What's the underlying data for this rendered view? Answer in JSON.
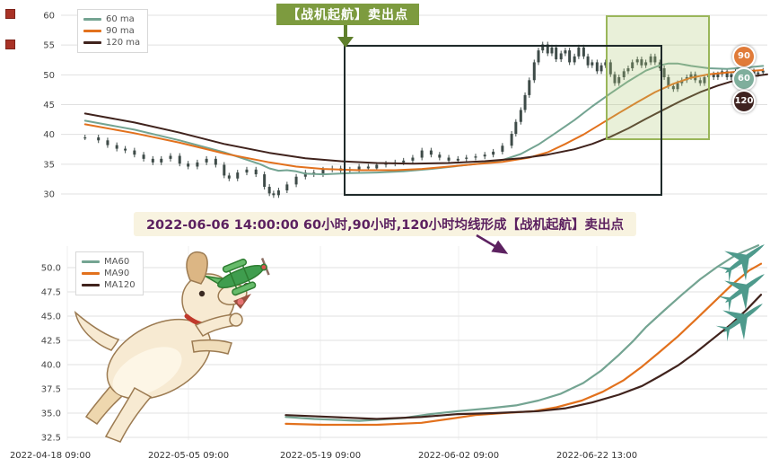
{
  "colors": {
    "ma60": "#74a492",
    "ma90": "#e2711d",
    "ma120": "#40231d",
    "candle": "#3e4b48",
    "sell_label_bg": "#7d9b3f",
    "sell_arrow": "#5f7f2c",
    "annotation_text": "#5c2160",
    "annotation_bg": "#f8f3e0",
    "highlight_box_border": "#9ab65a",
    "pattern_box_border": "#1f2a2a",
    "jet": "#4e9a8c",
    "toy_plane": "#3f9d4e"
  },
  "top_chart": {
    "legend": [
      {
        "label": "60 ma",
        "color": "#74a492"
      },
      {
        "label": "90 ma",
        "color": "#e2711d"
      },
      {
        "label": "120 ma",
        "color": "#40231d"
      }
    ],
    "sell_label": "【战机起航】卖出点",
    "badges": [
      {
        "label": "90",
        "color": "#e07b39"
      },
      {
        "label": "60",
        "color": "#7fae9c"
      },
      {
        "label": "120",
        "color": "#3f2320"
      }
    ]
  },
  "annotation": {
    "text": "2022-06-06 14:00:00 60小时,90小时,120小时均线形成【战机起航】卖出点"
  },
  "bottom_chart": {
    "legend": [
      {
        "label": "MA60",
        "color": "#74a492"
      },
      {
        "label": "MA90",
        "color": "#e2711d"
      },
      {
        "label": "MA120",
        "color": "#40231d"
      }
    ]
  },
  "x_axis": {
    "labels": [
      "2022-04-18 09:00",
      "2022-05-05 09:00",
      "2022-05-19 09:00",
      "2022-06-02 09:00",
      "2022-06-22 13:00"
    ]
  },
  "chart_data": [
    {
      "type": "candlestick+line",
      "title": "hourly price with 60/90/120 moving averages",
      "ylim": [
        28.5,
        62
      ],
      "y_ticks": [
        30,
        35,
        40,
        45,
        50,
        55,
        60
      ],
      "grid": true,
      "legend_position": "top-left",
      "candle_color": "#3e4b48",
      "candles": [
        [
          0.034,
          39.5
        ],
        [
          0.053,
          39.0
        ],
        [
          0.066,
          38.2
        ],
        [
          0.079,
          37.6
        ],
        [
          0.091,
          37.3
        ],
        [
          0.104,
          36.6
        ],
        [
          0.117,
          35.9
        ],
        [
          0.13,
          35.3
        ],
        [
          0.142,
          35.9
        ],
        [
          0.155,
          36.4
        ],
        [
          0.168,
          35.1
        ],
        [
          0.18,
          34.6
        ],
        [
          0.193,
          35.3
        ],
        [
          0.206,
          35.9
        ],
        [
          0.219,
          34.9
        ],
        [
          0.231,
          33.1
        ],
        [
          0.238,
          32.6
        ],
        [
          0.25,
          33.6
        ],
        [
          0.263,
          34.1
        ],
        [
          0.276,
          33.3
        ],
        [
          0.288,
          31.2
        ],
        [
          0.295,
          30.1
        ],
        [
          0.301,
          29.8
        ],
        [
          0.308,
          30.6
        ],
        [
          0.32,
          31.6
        ],
        [
          0.333,
          32.9
        ],
        [
          0.346,
          33.6
        ],
        [
          0.358,
          33.3
        ],
        [
          0.371,
          34.1
        ],
        [
          0.384,
          34.3
        ],
        [
          0.396,
          33.9
        ],
        [
          0.409,
          34.1
        ],
        [
          0.422,
          34.6
        ],
        [
          0.435,
          34.3
        ],
        [
          0.447,
          34.9
        ],
        [
          0.46,
          35.1
        ],
        [
          0.473,
          35.3
        ],
        [
          0.485,
          35.6
        ],
        [
          0.498,
          36.1
        ],
        [
          0.511,
          37.3
        ],
        [
          0.524,
          36.6
        ],
        [
          0.536,
          36.1
        ],
        [
          0.549,
          35.6
        ],
        [
          0.562,
          35.9
        ],
        [
          0.574,
          36.1
        ],
        [
          0.587,
          36.3
        ],
        [
          0.6,
          36.6
        ],
        [
          0.612,
          37.1
        ],
        [
          0.625,
          38.1
        ],
        [
          0.638,
          40.1
        ],
        [
          0.644,
          42.1
        ],
        [
          0.651,
          44.1
        ],
        [
          0.657,
          46.6
        ],
        [
          0.663,
          49.1
        ],
        [
          0.67,
          52.1
        ],
        [
          0.676,
          54.1
        ],
        [
          0.682,
          55.1
        ],
        [
          0.689,
          53.6
        ],
        [
          0.695,
          54.6
        ],
        [
          0.701,
          52.6
        ],
        [
          0.708,
          53.6
        ],
        [
          0.714,
          54.1
        ],
        [
          0.72,
          52.1
        ],
        [
          0.727,
          53.1
        ],
        [
          0.733,
          54.6
        ],
        [
          0.74,
          53.1
        ],
        [
          0.746,
          51.6
        ],
        [
          0.752,
          52.1
        ],
        [
          0.759,
          50.6
        ],
        [
          0.765,
          51.6
        ],
        [
          0.771,
          52.1
        ],
        [
          0.778,
          50.1
        ],
        [
          0.784,
          48.6
        ],
        [
          0.79,
          49.6
        ],
        [
          0.797,
          50.6
        ],
        [
          0.803,
          51.1
        ],
        [
          0.809,
          52.1
        ],
        [
          0.816,
          52.6
        ],
        [
          0.822,
          51.6
        ],
        [
          0.828,
          52.1
        ],
        [
          0.835,
          53.1
        ],
        [
          0.841,
          52.1
        ],
        [
          0.848,
          51.1
        ],
        [
          0.854,
          49.6
        ],
        [
          0.86,
          48.1
        ],
        [
          0.867,
          47.6
        ],
        [
          0.873,
          48.6
        ],
        [
          0.879,
          49.1
        ],
        [
          0.886,
          49.6
        ],
        [
          0.892,
          50.1
        ],
        [
          0.898,
          49.1
        ],
        [
          0.905,
          48.6
        ],
        [
          0.911,
          49.6
        ],
        [
          0.917,
          50.1
        ],
        [
          0.924,
          49.6
        ],
        [
          0.93,
          50.1
        ],
        [
          0.936,
          50.6
        ],
        [
          0.943,
          49.6
        ],
        [
          0.949,
          50.1
        ],
        [
          0.955,
          50.6
        ],
        [
          0.962,
          49.9
        ],
        [
          0.968,
          50.3
        ],
        [
          0.975,
          50.6
        ],
        [
          0.981,
          50.1
        ],
        [
          0.987,
          50.4
        ],
        [
          0.994,
          50.7
        ]
      ],
      "series": [
        {
          "name": "60 ma",
          "color": "#74a492",
          "points": [
            [
              0.034,
              42.3
            ],
            [
              0.104,
              40.8
            ],
            [
              0.168,
              39.0
            ],
            [
              0.231,
              37.0
            ],
            [
              0.282,
              35.0
            ],
            [
              0.295,
              34.3
            ],
            [
              0.308,
              33.9
            ],
            [
              0.32,
              34.0
            ],
            [
              0.333,
              33.8
            ],
            [
              0.346,
              33.4
            ],
            [
              0.371,
              33.3
            ],
            [
              0.409,
              33.5
            ],
            [
              0.447,
              33.6
            ],
            [
              0.485,
              33.8
            ],
            [
              0.524,
              34.2
            ],
            [
              0.562,
              34.7
            ],
            [
              0.6,
              35.2
            ],
            [
              0.625,
              35.7
            ],
            [
              0.651,
              36.7
            ],
            [
              0.676,
              38.3
            ],
            [
              0.701,
              40.3
            ],
            [
              0.727,
              42.4
            ],
            [
              0.752,
              44.7
            ],
            [
              0.778,
              46.9
            ],
            [
              0.803,
              48.9
            ],
            [
              0.828,
              50.7
            ],
            [
              0.848,
              51.6
            ],
            [
              0.86,
              51.9
            ],
            [
              0.873,
              51.9
            ],
            [
              0.892,
              51.5
            ],
            [
              0.917,
              51.1
            ],
            [
              0.943,
              51.0
            ],
            [
              0.968,
              51.2
            ],
            [
              0.994,
              51.5
            ]
          ]
        },
        {
          "name": "90 ma",
          "color": "#e2711d",
          "points": [
            [
              0.034,
              41.7
            ],
            [
              0.104,
              40.2
            ],
            [
              0.168,
              38.6
            ],
            [
              0.231,
              36.8
            ],
            [
              0.295,
              35.3
            ],
            [
              0.333,
              34.6
            ],
            [
              0.371,
              34.2
            ],
            [
              0.422,
              34.0
            ],
            [
              0.473,
              34.0
            ],
            [
              0.511,
              34.2
            ],
            [
              0.549,
              34.6
            ],
            [
              0.587,
              35.0
            ],
            [
              0.625,
              35.4
            ],
            [
              0.663,
              36.1
            ],
            [
              0.689,
              37.0
            ],
            [
              0.714,
              38.4
            ],
            [
              0.74,
              40.0
            ],
            [
              0.765,
              41.8
            ],
            [
              0.79,
              43.6
            ],
            [
              0.816,
              45.4
            ],
            [
              0.841,
              47.1
            ],
            [
              0.867,
              48.5
            ],
            [
              0.892,
              49.5
            ],
            [
              0.917,
              50.1
            ],
            [
              0.943,
              50.4
            ],
            [
              0.968,
              50.6
            ],
            [
              0.994,
              50.8
            ]
          ]
        },
        {
          "name": "120 ma",
          "color": "#40231d",
          "points": [
            [
              0.034,
              43.5
            ],
            [
              0.104,
              42.0
            ],
            [
              0.168,
              40.3
            ],
            [
              0.231,
              38.4
            ],
            [
              0.295,
              36.9
            ],
            [
              0.346,
              36.0
            ],
            [
              0.396,
              35.5
            ],
            [
              0.447,
              35.2
            ],
            [
              0.498,
              35.1
            ],
            [
              0.549,
              35.2
            ],
            [
              0.6,
              35.5
            ],
            [
              0.651,
              36.0
            ],
            [
              0.689,
              36.6
            ],
            [
              0.727,
              37.5
            ],
            [
              0.752,
              38.4
            ],
            [
              0.778,
              39.6
            ],
            [
              0.803,
              41.0
            ],
            [
              0.828,
              42.6
            ],
            [
              0.854,
              44.2
            ],
            [
              0.879,
              45.7
            ],
            [
              0.905,
              47.1
            ],
            [
              0.93,
              48.2
            ],
            [
              0.955,
              49.1
            ],
            [
              0.981,
              49.8
            ],
            [
              1.0,
              50.1
            ]
          ]
        }
      ]
    },
    {
      "type": "line",
      "title": "moving averages detail",
      "ylim": [
        32,
        53.5
      ],
      "y_ticks": [
        50.0,
        47.5,
        45.0,
        42.5,
        40.0,
        37.5,
        35.0,
        32.5
      ],
      "grid": true,
      "legend_position": "top-left",
      "x_tick_labels": [
        "2022-04-18 09:00",
        "2022-05-05 09:00",
        "2022-05-19 09:00",
        "2022-06-02 09:00",
        "2022-06-22 13:00"
      ],
      "series": [
        {
          "name": "MA60",
          "color": "#74a492",
          "points": [
            [
              0.312,
              34.6
            ],
            [
              0.353,
              34.4
            ],
            [
              0.417,
              34.2
            ],
            [
              0.481,
              34.5
            ],
            [
              0.519,
              34.9
            ],
            [
              0.558,
              35.2
            ],
            [
              0.603,
              35.5
            ],
            [
              0.641,
              35.8
            ],
            [
              0.673,
              36.3
            ],
            [
              0.705,
              37.0
            ],
            [
              0.737,
              38.1
            ],
            [
              0.763,
              39.4
            ],
            [
              0.788,
              41.0
            ],
            [
              0.808,
              42.4
            ],
            [
              0.827,
              43.9
            ],
            [
              0.853,
              45.6
            ],
            [
              0.878,
              47.2
            ],
            [
              0.904,
              48.8
            ],
            [
              0.929,
              50.1
            ],
            [
              0.955,
              51.3
            ],
            [
              0.987,
              52.3
            ]
          ]
        },
        {
          "name": "MA90",
          "color": "#e2711d",
          "points": [
            [
              0.312,
              33.9
            ],
            [
              0.365,
              33.8
            ],
            [
              0.442,
              33.8
            ],
            [
              0.506,
              34.0
            ],
            [
              0.545,
              34.4
            ],
            [
              0.583,
              34.8
            ],
            [
              0.622,
              35.0
            ],
            [
              0.667,
              35.2
            ],
            [
              0.699,
              35.6
            ],
            [
              0.735,
              36.3
            ],
            [
              0.765,
              37.2
            ],
            [
              0.795,
              38.4
            ],
            [
              0.821,
              39.8
            ],
            [
              0.846,
              41.3
            ],
            [
              0.872,
              42.9
            ],
            [
              0.897,
              44.6
            ],
            [
              0.923,
              46.4
            ],
            [
              0.949,
              48.2
            ],
            [
              0.974,
              49.7
            ],
            [
              0.991,
              50.4
            ]
          ]
        },
        {
          "name": "MA120",
          "color": "#40231d",
          "points": [
            [
              0.312,
              34.8
            ],
            [
              0.378,
              34.6
            ],
            [
              0.442,
              34.4
            ],
            [
              0.506,
              34.6
            ],
            [
              0.558,
              34.9
            ],
            [
              0.609,
              35.0
            ],
            [
              0.673,
              35.2
            ],
            [
              0.712,
              35.5
            ],
            [
              0.75,
              36.1
            ],
            [
              0.788,
              36.9
            ],
            [
              0.821,
              37.8
            ],
            [
              0.846,
              38.8
            ],
            [
              0.872,
              39.9
            ],
            [
              0.897,
              41.2
            ],
            [
              0.923,
              42.7
            ],
            [
              0.949,
              44.2
            ],
            [
              0.971,
              45.7
            ],
            [
              0.991,
              47.2
            ]
          ]
        }
      ]
    }
  ]
}
